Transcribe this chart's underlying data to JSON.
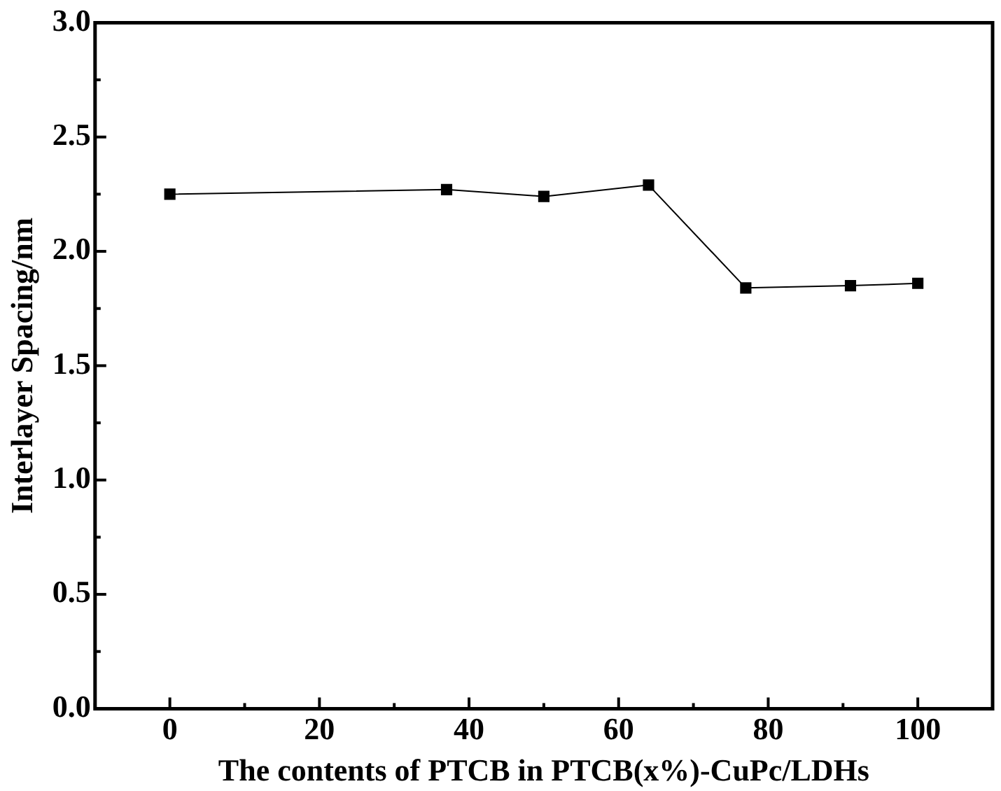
{
  "chart_data": {
    "type": "line",
    "xlabel": "The contents of PTCB in PTCB(x%)-CuPc/LDHs",
    "ylabel": "Interlayer Spacing/nm",
    "x": [
      0,
      37,
      50,
      64,
      77,
      91,
      100
    ],
    "series": [
      {
        "color": "#000000",
        "values": [
          2.25,
          2.27,
          2.24,
          2.29,
          1.84,
          1.85,
          1.86
        ]
      }
    ],
    "xlim": [
      -10,
      110
    ],
    "xticks": [
      0,
      20,
      40,
      60,
      80,
      100
    ],
    "ylim": [
      0,
      3
    ],
    "yticks": [
      {
        "value": 0,
        "label": "0.0"
      },
      {
        "value": 0.5,
        "label": "0.5"
      },
      {
        "value": 1,
        "label": "1.0"
      },
      {
        "value": 1.5,
        "label": "1.5"
      },
      {
        "value": 2,
        "label": "2.0"
      },
      {
        "value": 2.5,
        "label": "2.5"
      },
      {
        "value": 3,
        "label": "3.0"
      }
    ],
    "grid": false,
    "legend": false,
    "marker": "square",
    "line_style": "solid"
  }
}
